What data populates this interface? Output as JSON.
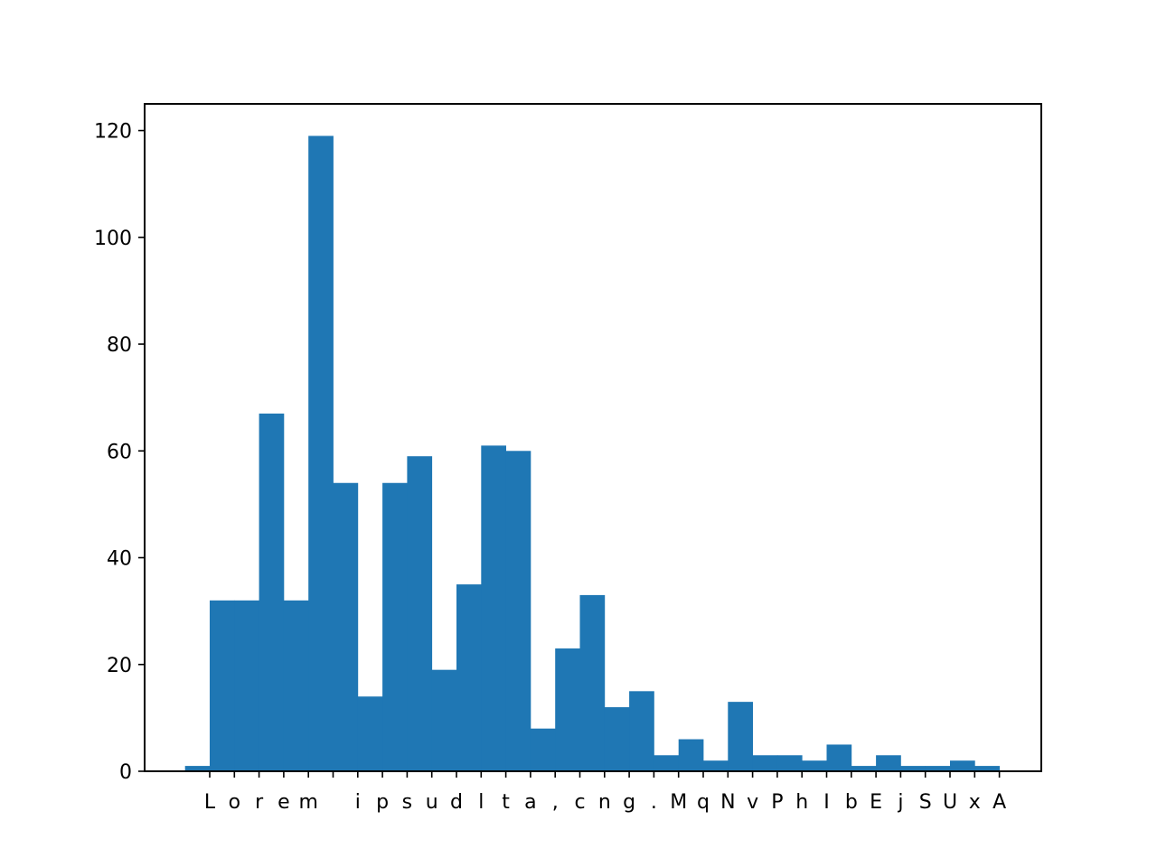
{
  "chart_data": {
    "type": "bar",
    "categories": [
      "L",
      "o",
      "r",
      "e",
      "m",
      " ",
      "i",
      "p",
      "s",
      "u",
      "d",
      "l",
      "t",
      "a",
      ",",
      "c",
      "n",
      "g",
      ".",
      "M",
      "q",
      "N",
      "v",
      "P",
      "h",
      "I",
      "b",
      "E",
      "j",
      "S",
      "U",
      "x",
      "A"
    ],
    "values": [
      32,
      32,
      67,
      32,
      119,
      54,
      14,
      54,
      59,
      19,
      35,
      61,
      60,
      8,
      23,
      33,
      12,
      15,
      3,
      6,
      2,
      13,
      3,
      3,
      2,
      5,
      1,
      3,
      1,
      1,
      2,
      1,
      0
    ],
    "extra_bars": [
      {
        "position": -1,
        "value": 1
      }
    ],
    "ylim": [
      0,
      125
    ],
    "yticks": [
      0,
      20,
      40,
      60,
      80,
      100,
      120
    ],
    "grid": false,
    "bar_color": "#1f77b4"
  }
}
